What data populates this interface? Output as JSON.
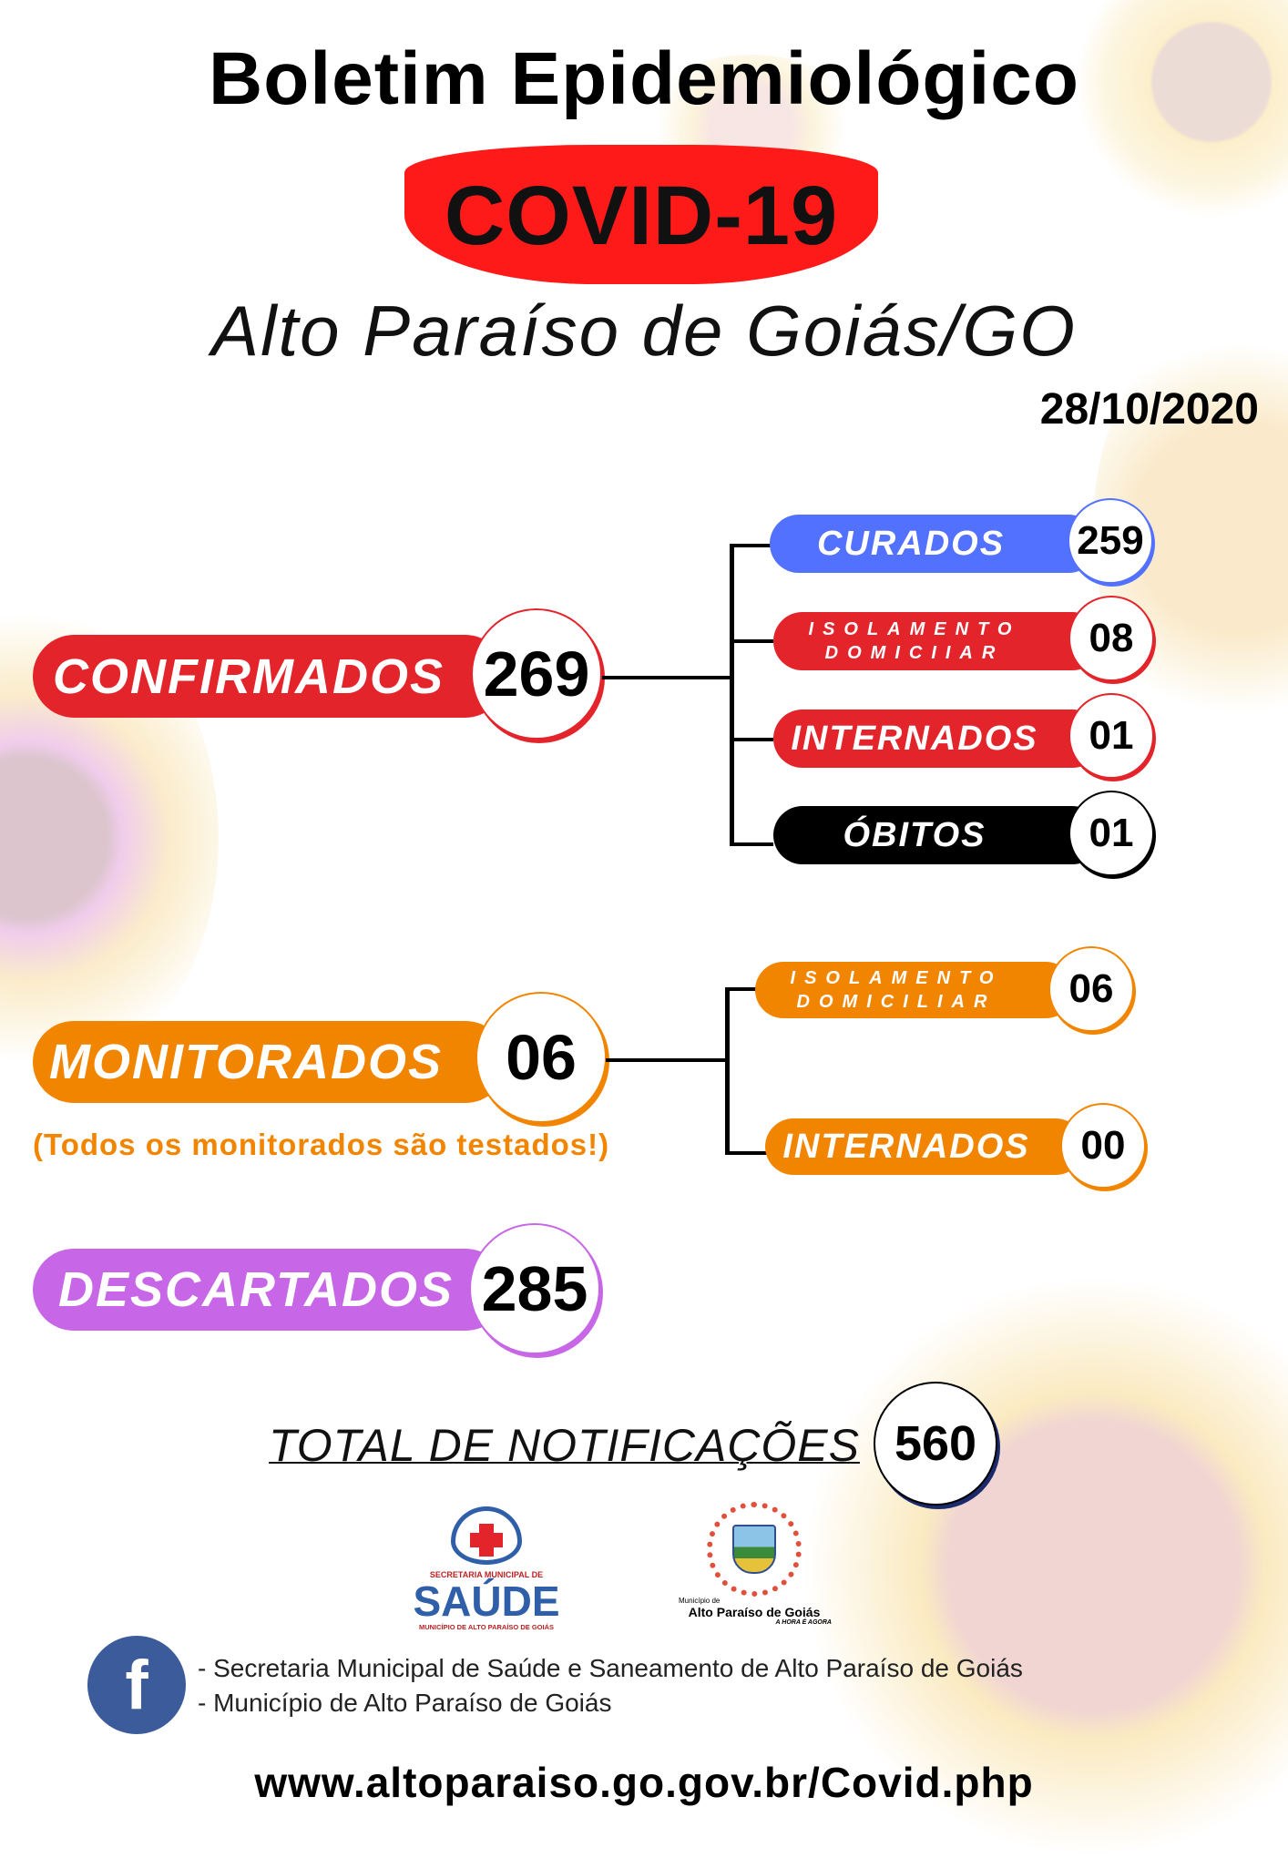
{
  "header": {
    "title": "Boletim Epidemiológico",
    "badge": "COVID-19",
    "city": "Alto Paraíso de Goiás/GO",
    "date": "28/10/2020"
  },
  "colors": {
    "blue": "#5271ff",
    "red": "#e3242b",
    "black": "#000000",
    "orange": "#f28500",
    "purple": "#c766e6"
  },
  "confirmados": {
    "label": "CONFIRMADOS",
    "value": "269",
    "breakdown": [
      {
        "label": "CURADOS",
        "value": "259"
      },
      {
        "label_line1": "ISOLAMENTO",
        "label_line2": "DOMICIIAR",
        "value": "08"
      },
      {
        "label": "INTERNADOS",
        "value": "01"
      },
      {
        "label": "ÓBITOS",
        "value": "01"
      }
    ]
  },
  "monitorados": {
    "label": "MONITORADOS",
    "value": "06",
    "note": "(Todos os monitorados são testados!)",
    "breakdown": [
      {
        "label_line1": "ISOLAMENTO",
        "label_line2": "DOMICILIAR",
        "value": "06"
      },
      {
        "label": "INTERNADOS",
        "value": "00"
      }
    ]
  },
  "descartados": {
    "label": "DESCARTADOS",
    "value": "285"
  },
  "total": {
    "label": "TOTAL DE NOTIFICAÇÕES",
    "value": "560"
  },
  "logos": {
    "saude_top": "SECRETARIA MUNICIPAL DE",
    "saude_main": "SAÚDE",
    "saude_bottom": "MUNICÍPIO DE ALTO PARAÍSO DE GOIÁS",
    "municipio_small": "Município de",
    "municipio_main": "Alto Paraíso de Goiás",
    "municipio_slogan": "A HORA É AGORA"
  },
  "footer": {
    "facebook_icon": "facebook-icon",
    "line1": "- Secretaria Municipal de Saúde e Saneamento de Alto Paraíso de Goiás",
    "line2": "- Município de Alto Paraíso de Goiás",
    "url": "www.altoparaiso.go.gov.br/Covid.php"
  }
}
